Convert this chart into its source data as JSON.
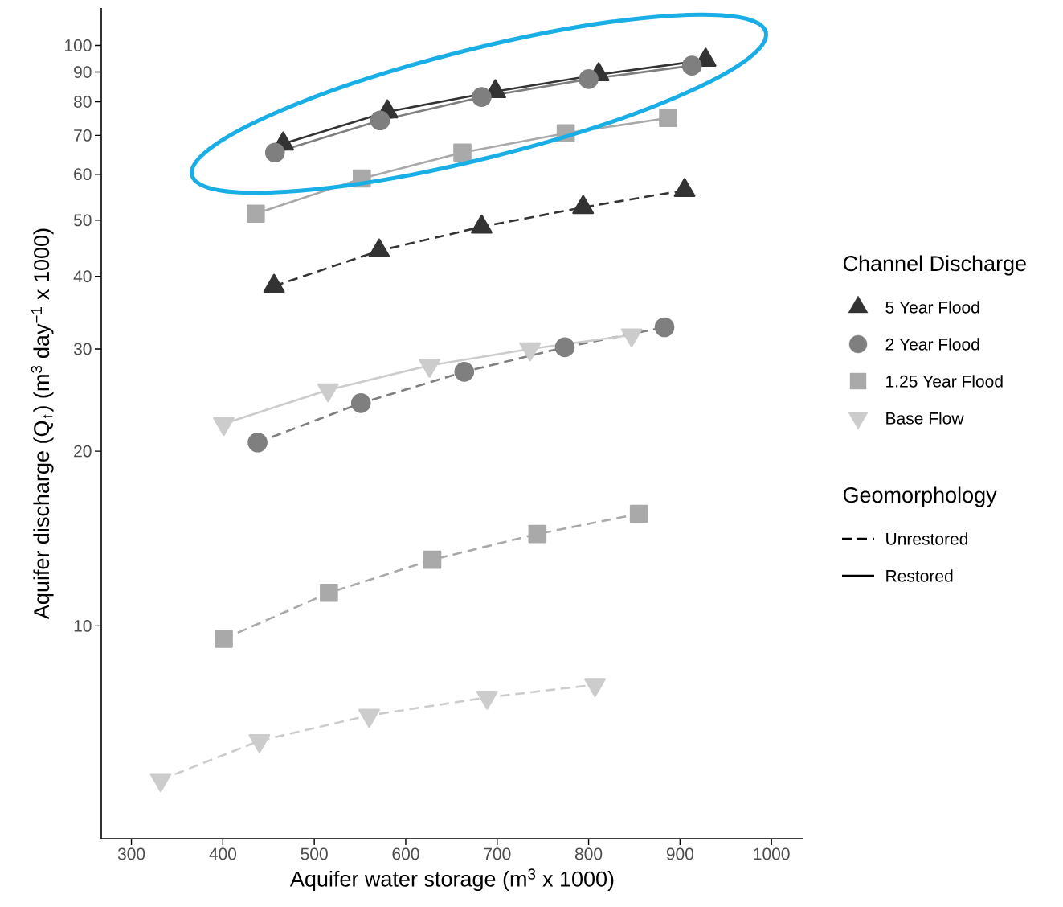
{
  "chart_data": {
    "type": "line",
    "xlabel": "Aquifer water storage (m$^{3}$ x 1000)",
    "ylabel": "Aquifer discharge (Q$_{↑}$) (m$^{3}$ day$^{−1}$ x 1000)",
    "legend_title": "Channel Discharge",
    "legend": "right",
    "log": "y",
    "grid": false,
    "xlim": [
      267,
      1035
    ],
    "xticks": [
      300,
      400,
      500,
      600,
      700,
      800,
      900,
      1000
    ],
    "ylim": [
      4.3,
      116
    ],
    "yticks": [
      10,
      20,
      30,
      40,
      50,
      60,
      70,
      80,
      90,
      100
    ],
    "annotations": [
      "Geomorphology",
      "Unrestored",
      "Restored"
    ],
    "series": [
      {
        "name": "5 Year Flood",
        "color": "#333333",
        "marker": "triangle",
        "line_style": "dashed",
        "x": [
          456,
          571,
          683,
          794,
          905
        ],
        "values": [
          38.5,
          44.3,
          48.7,
          52.6,
          56.3
        ]
      },
      {
        "color": "#333333",
        "marker": "triangle",
        "line_style": "solid",
        "x": [
          466,
          580,
          698,
          811,
          928
        ],
        "values": [
          67.7,
          76.9,
          83.3,
          89.1,
          94.4
        ]
      },
      {
        "name": "2 Year Flood",
        "color": "#7f7f7f",
        "marker": "circle",
        "line_style": "dashed",
        "x": [
          438,
          551,
          664,
          774,
          883
        ],
        "values": [
          20.7,
          24.2,
          27.4,
          30.2,
          32.7
        ]
      },
      {
        "color": "#7f7f7f",
        "marker": "circle",
        "line_style": "solid",
        "x": [
          457,
          572,
          683,
          800,
          913
        ],
        "values": [
          65.4,
          74.3,
          81.5,
          87.5,
          92.3
        ]
      },
      {
        "name": "1.25 Year Flood",
        "color": "#a9a9a9",
        "marker": "square",
        "line_style": "dashed",
        "x": [
          401,
          516,
          629,
          744,
          855
        ],
        "values": [
          9.5,
          11.4,
          13.0,
          14.4,
          15.6
        ]
      },
      {
        "color": "#a9a9a9",
        "marker": "square",
        "line_style": "solid",
        "x": [
          436,
          552,
          662,
          775,
          887
        ],
        "values": [
          51.3,
          59.0,
          65.4,
          70.6,
          75.0
        ]
      },
      {
        "name": "Base Flow",
        "color": "#cccccc",
        "marker": "triangle down",
        "line_style": "dashed",
        "x": [
          332,
          440,
          560,
          689,
          807
        ],
        "values": [
          5.43,
          6.34,
          7.01,
          7.53,
          7.92
        ]
      },
      {
        "color": "#cccccc",
        "marker": "triangle down",
        "line_style": "solid",
        "x": [
          401,
          515,
          626,
          736,
          847
        ],
        "values": [
          22.3,
          25.5,
          28.1,
          30.0,
          31.7
        ]
      }
    ]
  }
}
